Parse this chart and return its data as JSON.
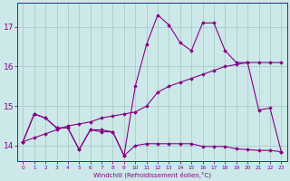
{
  "xlabel": "Windchill (Refroidissement éolien,°C)",
  "background_color": "#cce8e8",
  "grid_color": "#aacccc",
  "line_color": "#880088",
  "x_ticks": [
    0,
    1,
    2,
    3,
    4,
    5,
    6,
    7,
    8,
    9,
    10,
    11,
    12,
    13,
    14,
    15,
    16,
    17,
    18,
    19,
    20,
    21,
    22,
    23
  ],
  "x_tick_labels": [
    "0",
    "1",
    "2",
    "3",
    "4",
    "5",
    "6",
    "7",
    "8",
    "9",
    "10",
    "11",
    "12",
    "13",
    "14",
    "15",
    "16",
    "17",
    "18",
    "19",
    "20",
    "21",
    "22",
    "23"
  ],
  "y_ticks": [
    14,
    15,
    16,
    17
  ],
  "ylim": [
    13.6,
    17.6
  ],
  "xlim": [
    -0.5,
    23.5
  ],
  "series": [
    {
      "x": [
        0,
        1,
        2,
        3,
        4,
        5,
        6,
        7,
        8,
        9,
        10,
        11,
        12,
        13,
        14,
        15,
        16,
        17,
        18,
        19,
        20,
        21,
        22,
        23
      ],
      "y": [
        14.1,
        14.8,
        14.7,
        14.45,
        14.45,
        13.9,
        14.4,
        14.4,
        14.35,
        13.75,
        15.5,
        16.55,
        17.3,
        17.05,
        16.6,
        16.4,
        17.1,
        17.1,
        16.4,
        16.1,
        16.1,
        14.9,
        14.95,
        13.85
      ]
    },
    {
      "x": [
        0,
        1,
        2,
        3,
        4,
        5,
        6,
        7,
        8,
        9,
        10,
        11,
        12,
        13,
        14,
        15,
        16,
        17,
        18,
        19,
        20,
        21,
        22,
        23
      ],
      "y": [
        14.1,
        14.2,
        14.3,
        14.4,
        14.5,
        14.55,
        14.6,
        14.7,
        14.75,
        14.8,
        14.85,
        15.0,
        15.35,
        15.5,
        15.6,
        15.7,
        15.8,
        15.9,
        16.0,
        16.05,
        16.1,
        16.1,
        16.1,
        16.1
      ]
    },
    {
      "x": [
        0,
        1,
        2,
        3,
        4,
        5,
        6,
        7,
        8,
        9,
        10,
        11,
        12,
        13,
        14,
        15,
        16,
        17,
        18,
        19,
        20,
        21,
        22,
        23
      ],
      "y": [
        14.1,
        14.8,
        14.7,
        14.45,
        14.45,
        13.9,
        14.4,
        14.35,
        14.35,
        13.75,
        14.0,
        14.05,
        14.05,
        14.05,
        14.05,
        14.05,
        13.98,
        13.98,
        13.98,
        13.92,
        13.9,
        13.88,
        13.88,
        13.85
      ]
    }
  ]
}
